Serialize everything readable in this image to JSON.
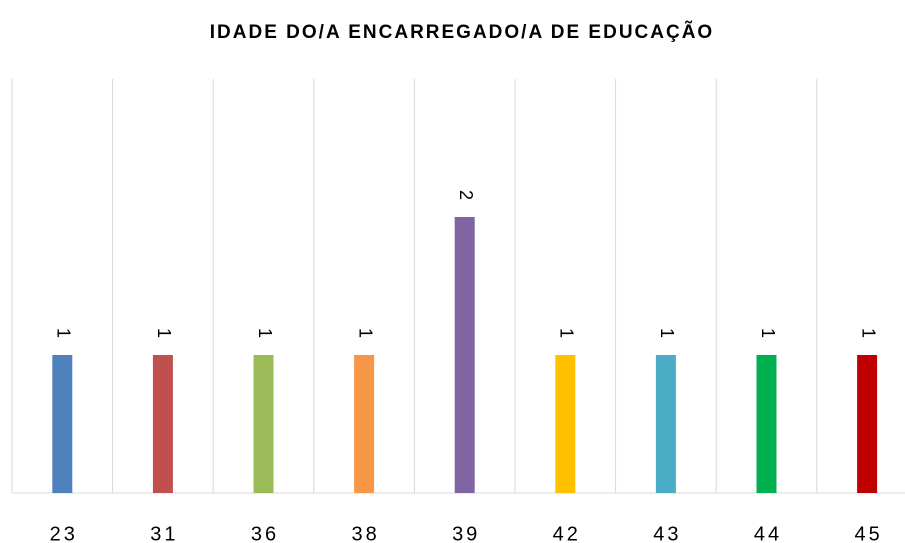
{
  "chart_data": {
    "type": "bar",
    "title": "IDADE DO/A ENCARREGADO/A DE EDUCAÇÃO",
    "categories": [
      "23",
      "31",
      "36",
      "38",
      "39",
      "42",
      "43",
      "44",
      "45"
    ],
    "values": [
      1,
      1,
      1,
      1,
      2,
      1,
      1,
      1,
      1
    ],
    "colors": [
      "#4f81bd",
      "#c0504d",
      "#9bbb59",
      "#f79646",
      "#8064a2",
      "#ffc000",
      "#4bacc6",
      "#00b050",
      "#c00000"
    ],
    "ylim": [
      0,
      3
    ]
  }
}
